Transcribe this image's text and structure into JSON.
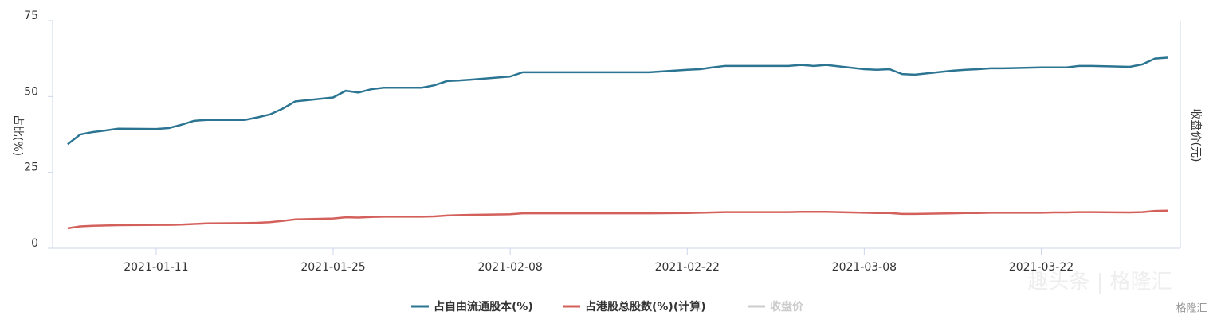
{
  "chart_data": {
    "type": "line",
    "y_label": "占比(%)",
    "y2_label": "收盘价(元)",
    "x": [
      "2021-01-04",
      "2021-01-05",
      "2021-01-06",
      "2021-01-07",
      "2021-01-08",
      "2021-01-11",
      "2021-01-12",
      "2021-01-13",
      "2021-01-14",
      "2021-01-15",
      "2021-01-18",
      "2021-01-19",
      "2021-01-20",
      "2021-01-21",
      "2021-01-22",
      "2021-01-25",
      "2021-01-26",
      "2021-01-27",
      "2021-01-28",
      "2021-01-29",
      "2021-02-01",
      "2021-02-02",
      "2021-02-03",
      "2021-02-04",
      "2021-02-05",
      "2021-02-08",
      "2021-02-09",
      "2021-02-10",
      "2021-02-18",
      "2021-02-19",
      "2021-02-22",
      "2021-02-23",
      "2021-02-24",
      "2021-02-25",
      "2021-02-26",
      "2021-03-01",
      "2021-03-02",
      "2021-03-03",
      "2021-03-04",
      "2021-03-05",
      "2021-03-08",
      "2021-03-09",
      "2021-03-10",
      "2021-03-11",
      "2021-03-12",
      "2021-03-15",
      "2021-03-16",
      "2021-03-17",
      "2021-03-18",
      "2021-03-19",
      "2021-03-22",
      "2021-03-23",
      "2021-03-24",
      "2021-03-25",
      "2021-03-26",
      "2021-03-29",
      "2021-03-30",
      "2021-03-31",
      "2021-04-01"
    ],
    "series": [
      {
        "name": "占自由流通股本(%)",
        "color": "#2b7592",
        "values": [
          34.3,
          37.5,
          38.3,
          38.8,
          39.4,
          39.3,
          39.6,
          40.7,
          42.0,
          42.3,
          42.3,
          43.1,
          44.1,
          46.0,
          48.4,
          49.7,
          51.9,
          51.3,
          52.4,
          52.9,
          52.9,
          53.7,
          55.1,
          55.3,
          55.6,
          56.6,
          58.0,
          58.0,
          58.0,
          58.0,
          58.8,
          59.0,
          59.6,
          60.1,
          60.1,
          60.1,
          60.1,
          60.4,
          60.1,
          60.4,
          59.0,
          58.8,
          59.0,
          57.4,
          57.2,
          58.5,
          58.8,
          59.0,
          59.3,
          59.3,
          59.6,
          59.6,
          59.6,
          60.1,
          60.1,
          59.8,
          60.6,
          62.5,
          62.8
        ]
      },
      {
        "name": "占港股总股数(%)(计算)",
        "color": "#d4605b",
        "values": [
          6.6,
          7.2,
          7.4,
          7.5,
          7.6,
          7.7,
          7.7,
          7.8,
          8.0,
          8.2,
          8.3,
          8.4,
          8.6,
          9.0,
          9.5,
          9.8,
          10.2,
          10.1,
          10.3,
          10.4,
          10.4,
          10.5,
          10.8,
          10.9,
          11.0,
          11.2,
          11.5,
          11.5,
          11.5,
          11.5,
          11.6,
          11.7,
          11.8,
          11.9,
          11.9,
          11.9,
          11.9,
          12.0,
          12.0,
          12.0,
          11.7,
          11.6,
          11.6,
          11.3,
          11.3,
          11.5,
          11.6,
          11.6,
          11.7,
          11.7,
          11.7,
          11.8,
          11.8,
          11.9,
          11.9,
          11.8,
          11.9,
          12.3,
          12.4
        ]
      },
      {
        "name": "收盘价",
        "color": "#cccccc",
        "axis": "y2",
        "values": [
          null,
          null,
          null,
          null,
          null,
          null,
          null,
          null,
          null,
          null,
          null,
          null,
          null,
          null,
          null,
          null,
          null,
          null,
          null,
          null,
          null,
          null,
          null,
          null,
          null,
          null,
          null,
          null,
          null,
          null,
          null,
          null,
          null,
          null,
          null,
          null,
          null,
          null,
          null,
          null,
          null,
          null,
          null,
          null,
          null,
          null,
          null,
          null,
          null,
          null,
          null,
          null,
          null,
          null,
          null,
          null,
          null,
          null,
          null
        ]
      }
    ],
    "xlim": [
      "2021-01-03",
      "2021-04-02"
    ],
    "xticks": [
      "2021-01-11",
      "2021-01-25",
      "2021-02-08",
      "2021-02-22",
      "2021-03-08",
      "2021-03-22"
    ],
    "ylim": [
      0,
      75
    ],
    "yticks": [
      0,
      25,
      50,
      75
    ],
    "watermark": "趣头条 | 格隆汇",
    "logo": "格隆汇"
  }
}
